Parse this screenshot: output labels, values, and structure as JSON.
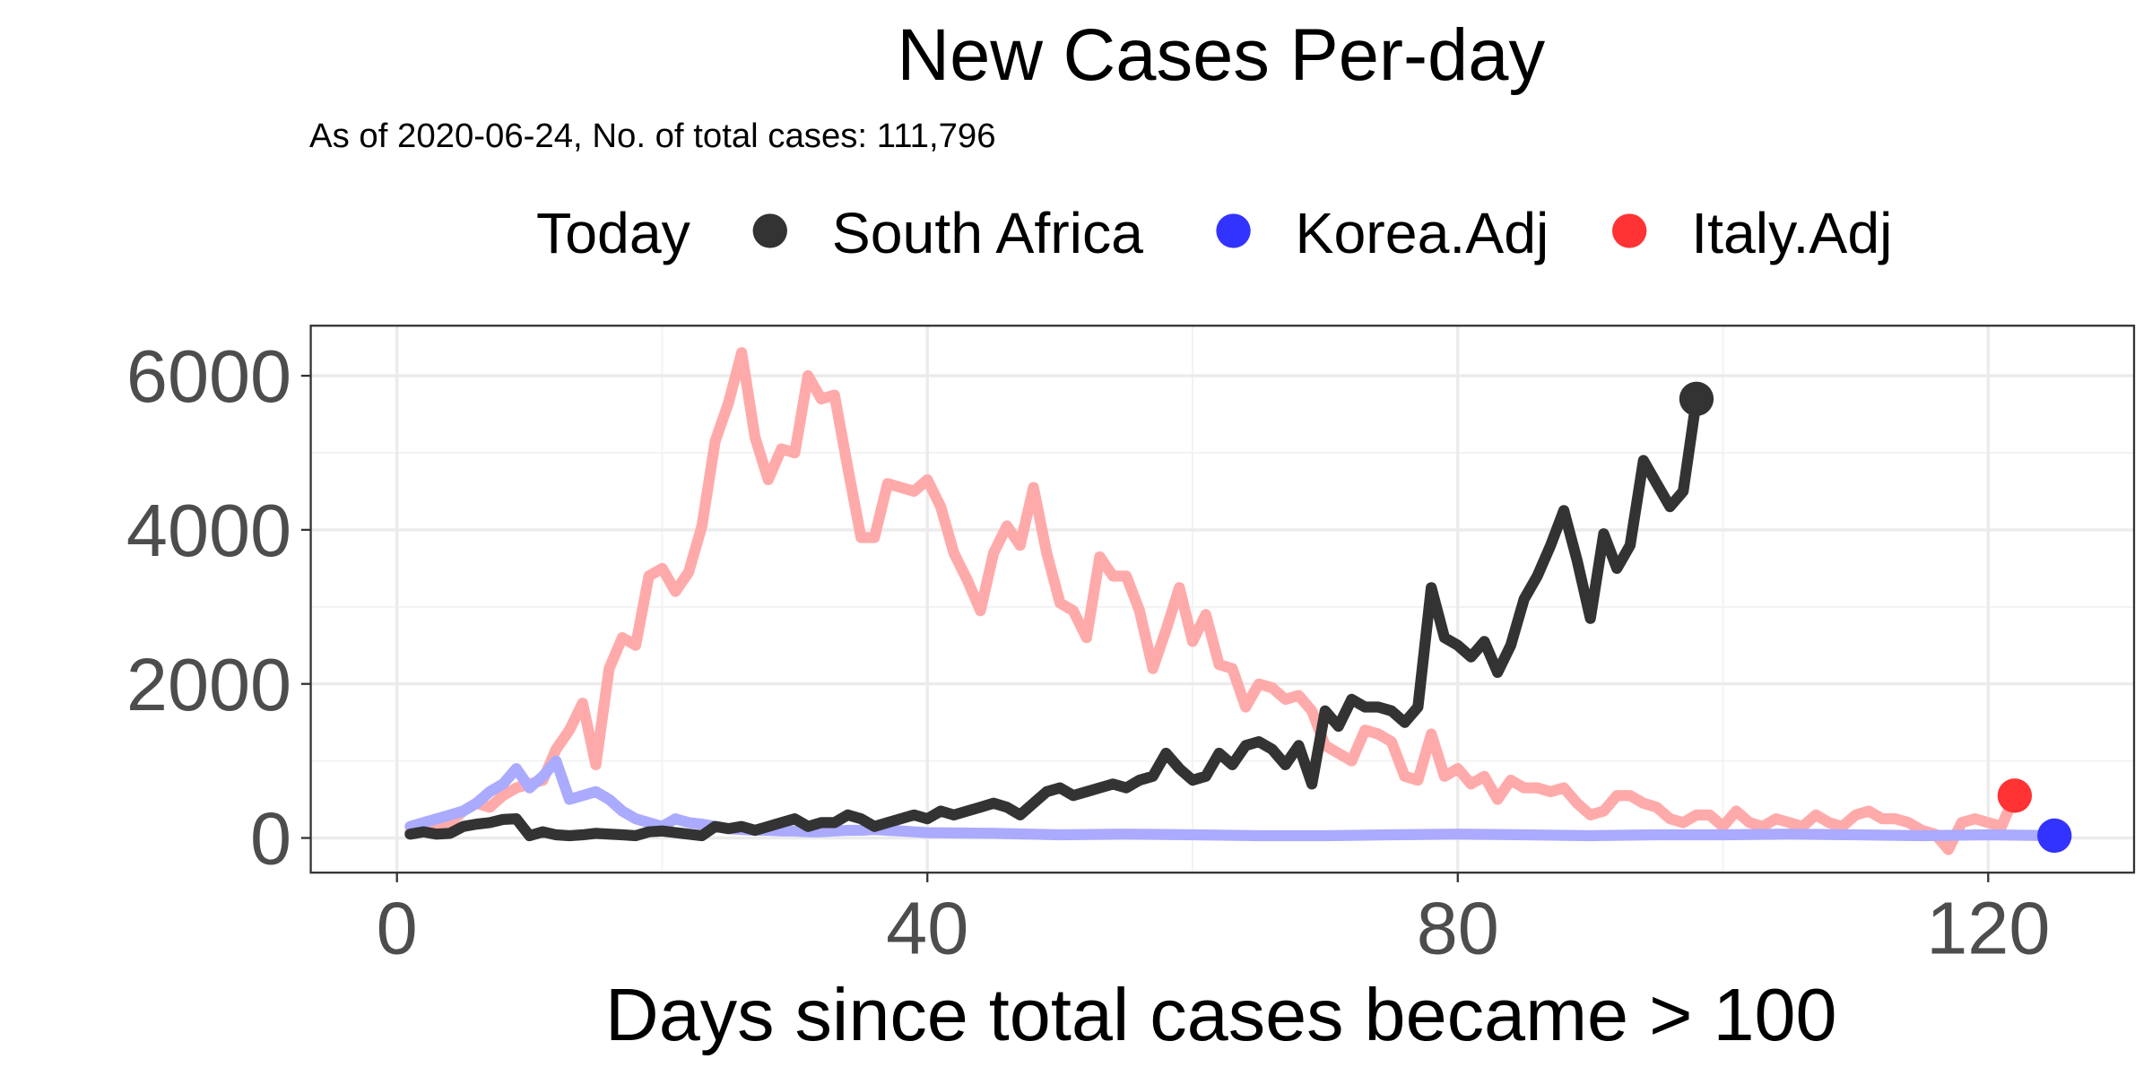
{
  "chart_data": {
    "type": "line",
    "title": "New Cases Per-day",
    "subtitle": "As of 2020-06-24, No. of total cases: 111,796",
    "xlabel": "Days since total cases became > 100",
    "ylabel": "",
    "xlim": [
      -6.5,
      131
    ],
    "ylim": [
      -450,
      6650
    ],
    "xticks": [
      0,
      40,
      80,
      120
    ],
    "yticks": [
      0,
      2000,
      4000,
      6000
    ],
    "grid": true,
    "legend": {
      "title": "Today",
      "position": "top",
      "entries": [
        {
          "label": "South Africa",
          "color": "#333333"
        },
        {
          "label": "Korea.Adj",
          "color": "#3333ff"
        },
        {
          "label": "Italy.Adj",
          "color": "#ff3333"
        }
      ]
    },
    "series": [
      {
        "name": "Italy.Adj",
        "color": "#ffaaaa",
        "marker_color": "#ff3333",
        "x": [
          1,
          2,
          3,
          4,
          5,
          6,
          7,
          8,
          9,
          10,
          11,
          12,
          13,
          14,
          15,
          16,
          17,
          18,
          19,
          20,
          21,
          22,
          23,
          24,
          25,
          26,
          27,
          28,
          29,
          30,
          31,
          32,
          33,
          34,
          35,
          36,
          37,
          38,
          39,
          40,
          41,
          42,
          43,
          44,
          45,
          46,
          47,
          48,
          49,
          50,
          51,
          52,
          53,
          54,
          55,
          56,
          57,
          58,
          59,
          60,
          61,
          62,
          63,
          64,
          65,
          66,
          67,
          68,
          69,
          70,
          71,
          72,
          73,
          74,
          75,
          76,
          77,
          78,
          79,
          80,
          81,
          82,
          83,
          84,
          85,
          86,
          87,
          88,
          89,
          90,
          91,
          92,
          93,
          94,
          95,
          96,
          97,
          98,
          99,
          100,
          101,
          102,
          103,
          104,
          105,
          106,
          107,
          108,
          109,
          110,
          111,
          112,
          113,
          114,
          115,
          116,
          117,
          118,
          119,
          120,
          121,
          122
        ],
        "y": [
          80,
          100,
          150,
          200,
          350,
          450,
          400,
          550,
          650,
          700,
          750,
          1150,
          1400,
          1750,
          950,
          2200,
          2600,
          2500,
          3400,
          3500,
          3200,
          3450,
          4050,
          5150,
          5650,
          6300,
          5200,
          4650,
          5050,
          5000,
          6000,
          5700,
          5750,
          4800,
          3900,
          3900,
          4600,
          4550,
          4500,
          4650,
          4300,
          3700,
          3350,
          2950,
          3700,
          4050,
          3800,
          4550,
          3700,
          3050,
          2950,
          2600,
          3650,
          3400,
          3400,
          2950,
          2200,
          2700,
          3250,
          2550,
          2900,
          2250,
          2200,
          1700,
          2000,
          1950,
          1800,
          1850,
          1650,
          1200,
          1100,
          1000,
          1400,
          1350,
          1250,
          800,
          750,
          1350,
          800,
          900,
          700,
          800,
          500,
          750,
          650,
          650,
          600,
          650,
          450,
          300,
          350,
          550,
          550,
          450,
          400,
          250,
          200,
          300,
          300,
          150,
          350,
          200,
          150,
          250,
          200,
          150,
          300,
          200,
          150,
          300,
          350,
          250,
          250,
          200,
          100,
          50,
          -150,
          200,
          250,
          200,
          150,
          550
        ]
      },
      {
        "name": "Korea.Adj",
        "color": "#aaaaff",
        "marker_color": "#3333ff",
        "x": [
          1,
          2,
          3,
          4,
          5,
          6,
          7,
          8,
          9,
          10,
          11,
          12,
          13,
          14,
          15,
          16,
          17,
          18,
          19,
          20,
          21,
          22,
          23,
          24,
          25,
          26,
          27,
          28,
          29,
          30,
          31,
          32,
          33,
          34,
          35,
          36,
          37,
          38,
          39,
          40,
          45,
          50,
          55,
          60,
          65,
          70,
          75,
          80,
          85,
          90,
          95,
          100,
          105,
          110,
          115,
          120,
          125
        ],
        "y": [
          150,
          200,
          250,
          300,
          350,
          450,
          600,
          700,
          900,
          650,
          800,
          1000,
          500,
          550,
          600,
          500,
          350,
          250,
          200,
          150,
          250,
          200,
          180,
          150,
          120,
          110,
          100,
          100,
          90,
          90,
          80,
          80,
          90,
          100,
          100,
          110,
          100,
          90,
          80,
          70,
          60,
          40,
          50,
          40,
          30,
          30,
          40,
          50,
          40,
          30,
          40,
          40,
          50,
          40,
          30,
          40,
          30
        ]
      },
      {
        "name": "South Africa",
        "color": "#333333",
        "marker_color": "#333333",
        "x": [
          1,
          2,
          3,
          4,
          5,
          6,
          7,
          8,
          9,
          10,
          11,
          12,
          13,
          14,
          15,
          16,
          17,
          18,
          19,
          20,
          21,
          22,
          23,
          24,
          25,
          26,
          27,
          28,
          29,
          30,
          31,
          32,
          33,
          34,
          35,
          36,
          37,
          38,
          39,
          40,
          41,
          42,
          43,
          44,
          45,
          46,
          47,
          48,
          49,
          50,
          51,
          52,
          53,
          54,
          55,
          56,
          57,
          58,
          59,
          60,
          61,
          62,
          63,
          64,
          65,
          66,
          67,
          68,
          69,
          70,
          71,
          72,
          73,
          74,
          75,
          76,
          77,
          78,
          79,
          80,
          81,
          82,
          83,
          84,
          85,
          86,
          87,
          88,
          89,
          90,
          91,
          92,
          93,
          94,
          95,
          96,
          97,
          98
        ],
        "y": [
          50,
          80,
          50,
          60,
          150,
          180,
          200,
          240,
          250,
          30,
          80,
          40,
          30,
          40,
          60,
          50,
          40,
          30,
          80,
          90,
          70,
          50,
          30,
          150,
          120,
          150,
          100,
          150,
          200,
          250,
          150,
          200,
          200,
          300,
          250,
          150,
          200,
          250,
          300,
          250,
          350,
          300,
          350,
          400,
          450,
          400,
          300,
          450,
          600,
          650,
          550,
          600,
          650,
          700,
          650,
          750,
          800,
          1100,
          900,
          750,
          800,
          1100,
          950,
          1200,
          1250,
          1150,
          950,
          1200,
          700,
          1650,
          1450,
          1800,
          1700,
          1700,
          1650,
          1500,
          1700,
          3250,
          2600,
          2500,
          2350,
          2550,
          2150,
          2500,
          3100,
          3400,
          3800,
          4250,
          3600,
          2850,
          3950,
          3500,
          3800,
          4900,
          4600,
          4300,
          4500,
          5700
        ]
      }
    ]
  }
}
